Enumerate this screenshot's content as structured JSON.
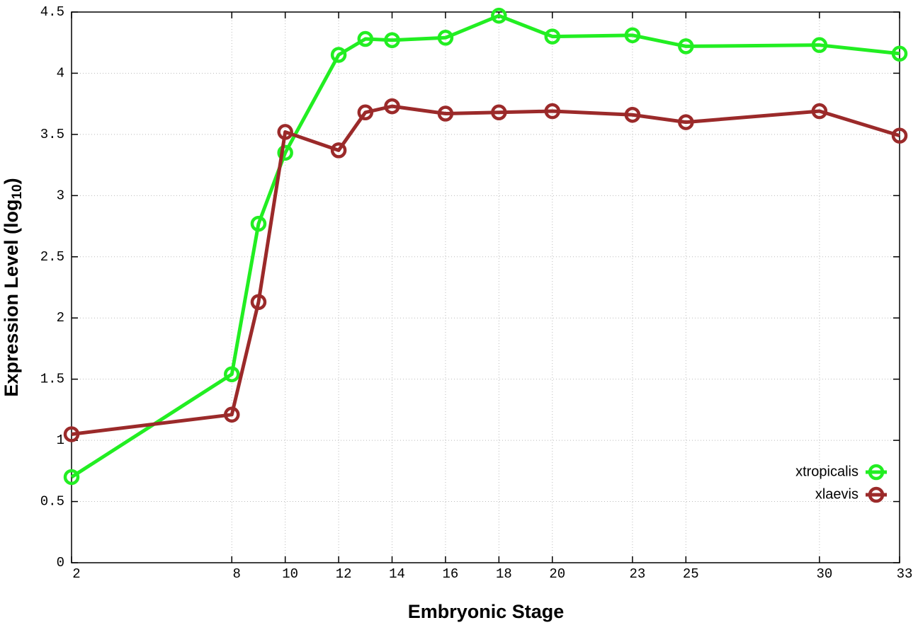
{
  "chart_data": {
    "type": "line",
    "xlabel": "Embryonic Stage",
    "ylabel": "Expression Level (log",
    "ylabel_subscript": "10",
    "ylabel_suffix": ")",
    "x": [
      2,
      8,
      9,
      10,
      12,
      13,
      14,
      16,
      18,
      20,
      23,
      25,
      30,
      33
    ],
    "series": [
      {
        "name": "xtropicalis",
        "color": "#22ee22",
        "values": [
          0.7,
          1.54,
          2.77,
          3.35,
          4.15,
          4.28,
          4.27,
          4.29,
          4.47,
          4.3,
          4.31,
          4.22,
          4.23,
          4.16
        ]
      },
      {
        "name": "xlaevis",
        "color": "#9b2a2a",
        "values": [
          1.05,
          1.21,
          2.13,
          3.52,
          3.37,
          3.68,
          3.73,
          3.67,
          3.68,
          3.69,
          3.66,
          3.6,
          3.69,
          3.49
        ]
      }
    ],
    "xlim": [
      2,
      33
    ],
    "xticks": [
      2,
      8,
      10,
      12,
      14,
      16,
      18,
      20,
      23,
      25,
      30,
      33
    ],
    "ylim": [
      0,
      4.5
    ],
    "yticks": [
      0,
      0.5,
      1,
      1.5,
      2,
      2.5,
      3,
      3.5,
      4,
      4.5
    ],
    "grid": true,
    "legend": "bottom-right"
  }
}
